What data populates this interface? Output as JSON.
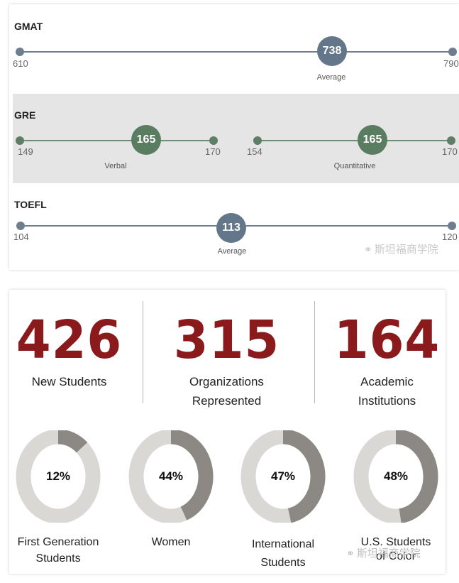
{
  "scores": {
    "gmat": {
      "title": "GMAT",
      "min": "610",
      "max": "790",
      "value": "738",
      "value_fraction": 0.711,
      "caption": "Average"
    },
    "gre": {
      "title": "GRE",
      "verbal": {
        "min": "149",
        "max": "170",
        "value": "165",
        "value_fraction": 0.762,
        "caption": "Verbal"
      },
      "quantitative": {
        "min": "154",
        "max": "170",
        "value": "165",
        "value_fraction": 0.6875,
        "caption": "Quantitative"
      }
    },
    "toefl": {
      "title": "TOEFL",
      "min": "104",
      "max": "120",
      "value": "113",
      "value_fraction": 0.5625,
      "caption": "Average"
    },
    "watermark": "斯坦福商学院"
  },
  "stats": {
    "new_students": {
      "number": "426",
      "label": "New Students"
    },
    "organizations": {
      "number": "315",
      "label_line1": "Organizations",
      "label_line2": "Represented"
    },
    "institutions": {
      "number": "164",
      "label_line1": "Academic",
      "label_line2": "Institutions"
    }
  },
  "donuts": [
    {
      "value": "12%",
      "percent": 12,
      "label_line1": "First Generation",
      "label_line2": "Students"
    },
    {
      "value": "44%",
      "percent": 44,
      "label_line1": "Women",
      "label_line2": ""
    },
    {
      "value": "47%",
      "percent": 47,
      "label_line1": "International",
      "label_line2": "Students"
    },
    {
      "value": "48%",
      "percent": 48,
      "label_line1": "U.S. Students",
      "label_line2": "of Color"
    }
  ],
  "watermark2": "斯坦福商学院",
  "colors": {
    "gmat_toefl_accent": "#63768a",
    "gre_accent": "#5a7d62",
    "stat_number": "#8a1a1c",
    "donut_fill": "#8c8984",
    "donut_track": "#d9d8d5"
  }
}
